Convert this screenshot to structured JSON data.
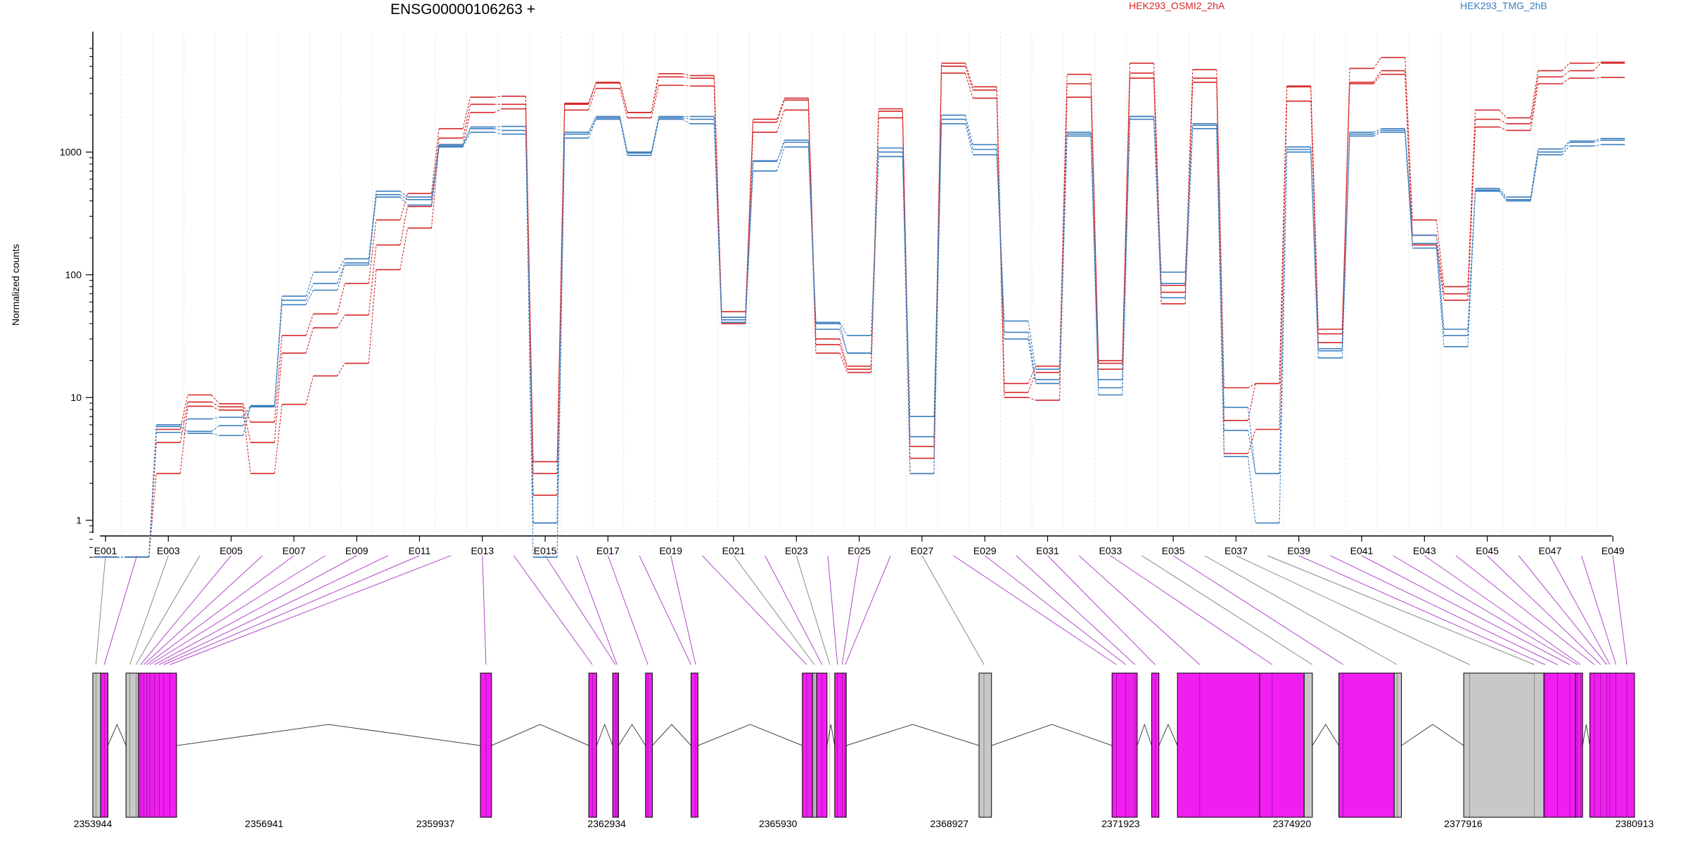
{
  "chart_data": {
    "type": "line",
    "title": "ENSG00000106263 +",
    "xlabel": "",
    "ylabel": "Normalized counts",
    "yscale": "log",
    "ylim": [
      0.5,
      7000
    ],
    "yticks": [
      1,
      10,
      100,
      1000
    ],
    "ytick_labels": [
      "1",
      "10",
      "100",
      "1000"
    ],
    "grid": "vertical dotted lines at each exon",
    "legend_position": "top",
    "colors": {
      "HEK293_OSMI2_2hA": "#d62728",
      "HEK293_TMG_2hB": "#3a7ebf",
      "exon_testable": "#f01ef0",
      "exon_untested": "#c8c8c8"
    },
    "exons": [
      "E001",
      "E002",
      "E003",
      "E004",
      "E005",
      "E006",
      "E007",
      "E008",
      "E009",
      "E010",
      "E011",
      "E012",
      "E013",
      "E014",
      "E015",
      "E016",
      "E017",
      "E018",
      "E019",
      "E020",
      "E021",
      "E022",
      "E023",
      "E024",
      "E025",
      "E026",
      "E027",
      "E028",
      "E029",
      "E030",
      "E031",
      "E032",
      "E033",
      "E034",
      "E035",
      "E036",
      "E037",
      "E038",
      "E039",
      "E040",
      "E041",
      "E042",
      "E043",
      "E044",
      "E045",
      "E046",
      "E047",
      "E048",
      "E049"
    ],
    "x_tick_labels": [
      "E001",
      "E003",
      "E005",
      "E007",
      "E009",
      "E011",
      "E013",
      "E015",
      "E017",
      "E019",
      "E021",
      "E023",
      "E025",
      "E027",
      "E029",
      "E031",
      "E033",
      "E035",
      "E037",
      "E039",
      "E041",
      "E043",
      "E045",
      "E047",
      "E049"
    ],
    "series": [
      {
        "name": "HEK293_OSMI2_2hA",
        "group": "HEK293_OSMI2_2hA",
        "values": [
          0.5,
          0.5,
          2.4,
          8.5,
          7.9,
          2.4,
          8.8,
          15,
          19,
          110,
          240,
          1150,
          2100,
          2250,
          1.6,
          2200,
          3300,
          1900,
          3500,
          3450,
          40,
          1450,
          2200,
          23,
          16,
          1900,
          2.4,
          4400,
          2750,
          10,
          9.5,
          2800,
          19,
          4000,
          58,
          3700,
          3.5,
          5.5,
          2600,
          28,
          3600,
          4300,
          175,
          62,
          1600,
          1500,
          3600,
          4000,
          4050
        ]
      },
      {
        "name": "HEK293_OSMI2_2hA",
        "group": "HEK293_OSMI2_2hA",
        "values": [
          0.5,
          0.5,
          4.3,
          9.2,
          8.4,
          4.3,
          23,
          37,
          47,
          175,
          360,
          1300,
          2450,
          2450,
          3.0,
          2450,
          3650,
          2100,
          4100,
          4000,
          45,
          1750,
          2650,
          27,
          17,
          2150,
          3.2,
          5000,
          3200,
          11,
          16,
          3600,
          17,
          4400,
          72,
          4000,
          6.5,
          13,
          3400,
          36,
          3700,
          4600,
          210,
          70,
          1850,
          1700,
          4100,
          4600,
          5300
        ]
      },
      {
        "name": "HEK293_OSMI2_2hA",
        "group": "HEK293_OSMI2_2hA",
        "values": [
          0.5,
          0.5,
          5.5,
          10.5,
          8.9,
          6.3,
          32,
          48,
          85,
          280,
          460,
          1550,
          2800,
          2850,
          2.4,
          2500,
          3700,
          2100,
          4350,
          4200,
          50,
          1850,
          2750,
          30,
          18,
          2250,
          4.0,
          5300,
          3400,
          13,
          18,
          4300,
          20,
          5300,
          82,
          4700,
          12,
          13,
          3450,
          33,
          4800,
          5900,
          280,
          80,
          2200,
          1900,
          4600,
          5300,
          5400
        ]
      },
      {
        "name": "HEK293_TMG_2hB",
        "group": "HEK293_TMG_2hB",
        "values": [
          0.5,
          0.5,
          5.2,
          5.1,
          4.9,
          8.5,
          57,
          75,
          120,
          430,
          370,
          1100,
          1450,
          1400,
          0.5,
          1300,
          1850,
          940,
          1850,
          1700,
          41,
          700,
          1100,
          36,
          23,
          920,
          2.4,
          1700,
          950,
          30,
          13,
          1350,
          10.5,
          1850,
          65,
          1550,
          3.3,
          0.95,
          1000,
          21,
          1350,
          1450,
          165,
          26,
          480,
          400,
          950,
          1120,
          1150
        ]
      },
      {
        "name": "HEK293_TMG_2hB",
        "group": "HEK293_TMG_2hB",
        "values": [
          0.5,
          0.5,
          5.8,
          5.3,
          5.9,
          8.4,
          62,
          85,
          125,
          450,
          410,
          1150,
          1550,
          1500,
          0.95,
          1400,
          1900,
          980,
          1900,
          1850,
          43,
          850,
          1200,
          40,
          23,
          1000,
          4.8,
          1850,
          1050,
          34,
          14,
          1400,
          12,
          1950,
          85,
          1650,
          5.4,
          2.4,
          1050,
          24,
          1400,
          1500,
          180,
          32,
          490,
          410,
          1000,
          1200,
          1250
        ]
      },
      {
        "name": "HEK293_TMG_2hB",
        "group": "HEK293_TMG_2hB",
        "values": [
          0.5,
          0.5,
          6.0,
          6.7,
          6.9,
          8.6,
          67,
          105,
          135,
          480,
          430,
          1120,
          1600,
          1620,
          0.95,
          1450,
          1950,
          1000,
          1950,
          1950,
          45,
          840,
          1250,
          41,
          32,
          1080,
          7.0,
          2000,
          1150,
          42,
          17,
          1450,
          14,
          1950,
          105,
          1700,
          8.3,
          2.4,
          1100,
          25,
          1450,
          1550,
          210,
          36,
          505,
          430,
          1060,
          1230,
          1290
        ]
      }
    ],
    "genomic_axis": {
      "tick_labels": [
        "2353944",
        "2356941",
        "2359937",
        "2362934",
        "2365930",
        "2368927",
        "2371923",
        "2374920",
        "2377916",
        "2380913"
      ],
      "range": [
        2353944,
        2380913
      ]
    },
    "exon_model": {
      "note": "exon blocks in gene model; values are fractions of the genomic track width",
      "blocks": [
        {
          "start": 0.0,
          "end": 0.0051,
          "type": "untested"
        },
        {
          "start": 0.0051,
          "end": 0.0098,
          "type": "testable"
        },
        {
          "start": 0.0215,
          "end": 0.0296,
          "type": "untested"
        },
        {
          "start": 0.0296,
          "end": 0.0543,
          "type": "testable"
        },
        {
          "start": 0.2514,
          "end": 0.2586,
          "type": "testable"
        },
        {
          "start": 0.3217,
          "end": 0.3268,
          "type": "testable"
        },
        {
          "start": 0.3372,
          "end": 0.341,
          "type": "testable"
        },
        {
          "start": 0.3585,
          "end": 0.3629,
          "type": "testable"
        },
        {
          "start": 0.388,
          "end": 0.3925,
          "type": "testable"
        },
        {
          "start": 0.4602,
          "end": 0.4668,
          "type": "testable"
        },
        {
          "start": 0.4668,
          "end": 0.4695,
          "type": "untested"
        },
        {
          "start": 0.4695,
          "end": 0.4762,
          "type": "testable"
        },
        {
          "start": 0.4812,
          "end": 0.4887,
          "type": "testable"
        },
        {
          "start": 0.5748,
          "end": 0.5829,
          "type": "untested"
        },
        {
          "start": 0.6611,
          "end": 0.6774,
          "type": "testable"
        },
        {
          "start": 0.6868,
          "end": 0.6915,
          "type": "testable"
        },
        {
          "start": 0.7035,
          "end": 0.7568,
          "type": "testable"
        },
        {
          "start": 0.7568,
          "end": 0.7857,
          "type": "testable"
        },
        {
          "start": 0.7857,
          "end": 0.791,
          "type": "untested"
        },
        {
          "start": 0.8082,
          "end": 0.8441,
          "type": "testable"
        },
        {
          "start": 0.8441,
          "end": 0.8488,
          "type": "untested"
        },
        {
          "start": 0.8892,
          "end": 0.9412,
          "type": "untested"
        },
        {
          "start": 0.9412,
          "end": 0.9617,
          "type": "testable"
        },
        {
          "start": 0.9617,
          "end": 0.9663,
          "type": "testable"
        },
        {
          "start": 0.971,
          "end": 1.0,
          "type": "testable"
        }
      ],
      "exon_positions": [
        0.002,
        0.0074,
        0.024,
        0.028,
        0.031,
        0.033,
        0.035,
        0.037,
        0.04,
        0.043,
        0.046,
        0.05,
        0.255,
        0.324,
        0.339,
        0.34,
        0.36,
        0.388,
        0.391,
        0.463,
        0.468,
        0.473,
        0.478,
        0.483,
        0.486,
        0.488,
        0.578,
        0.664,
        0.67,
        0.676,
        0.689,
        0.718,
        0.765,
        0.791,
        0.811,
        0.846,
        0.893,
        0.935,
        0.942,
        0.95,
        0.958,
        0.963,
        0.965,
        0.974,
        0.978,
        0.982,
        0.984,
        0.988,
        0.995
      ]
    }
  }
}
